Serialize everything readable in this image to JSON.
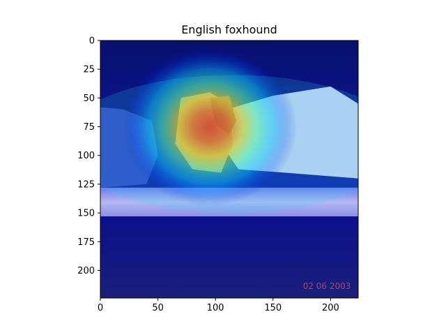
{
  "chart_data": {
    "type": "heatmap",
    "title": "English foxhound",
    "xlabel": "",
    "ylabel": "",
    "xlim": [
      0,
      224
    ],
    "ylim": [
      224,
      0
    ],
    "x_ticks": [
      0,
      50,
      100,
      150,
      200
    ],
    "y_ticks": [
      0,
      25,
      50,
      75,
      100,
      125,
      150,
      175,
      200
    ],
    "grid": false,
    "image_description": "photo of a white-and-brown dog lying on a bed, overlaid with a jet-colormap class-activation heatmap peaking on the dog's head",
    "heat_peak": {
      "x": 95,
      "y": 75,
      "sigma_x": 33,
      "sigma_y": 30,
      "intensity": 1.0
    },
    "colormap": "jet",
    "watermark_text": "02 06 2003"
  }
}
